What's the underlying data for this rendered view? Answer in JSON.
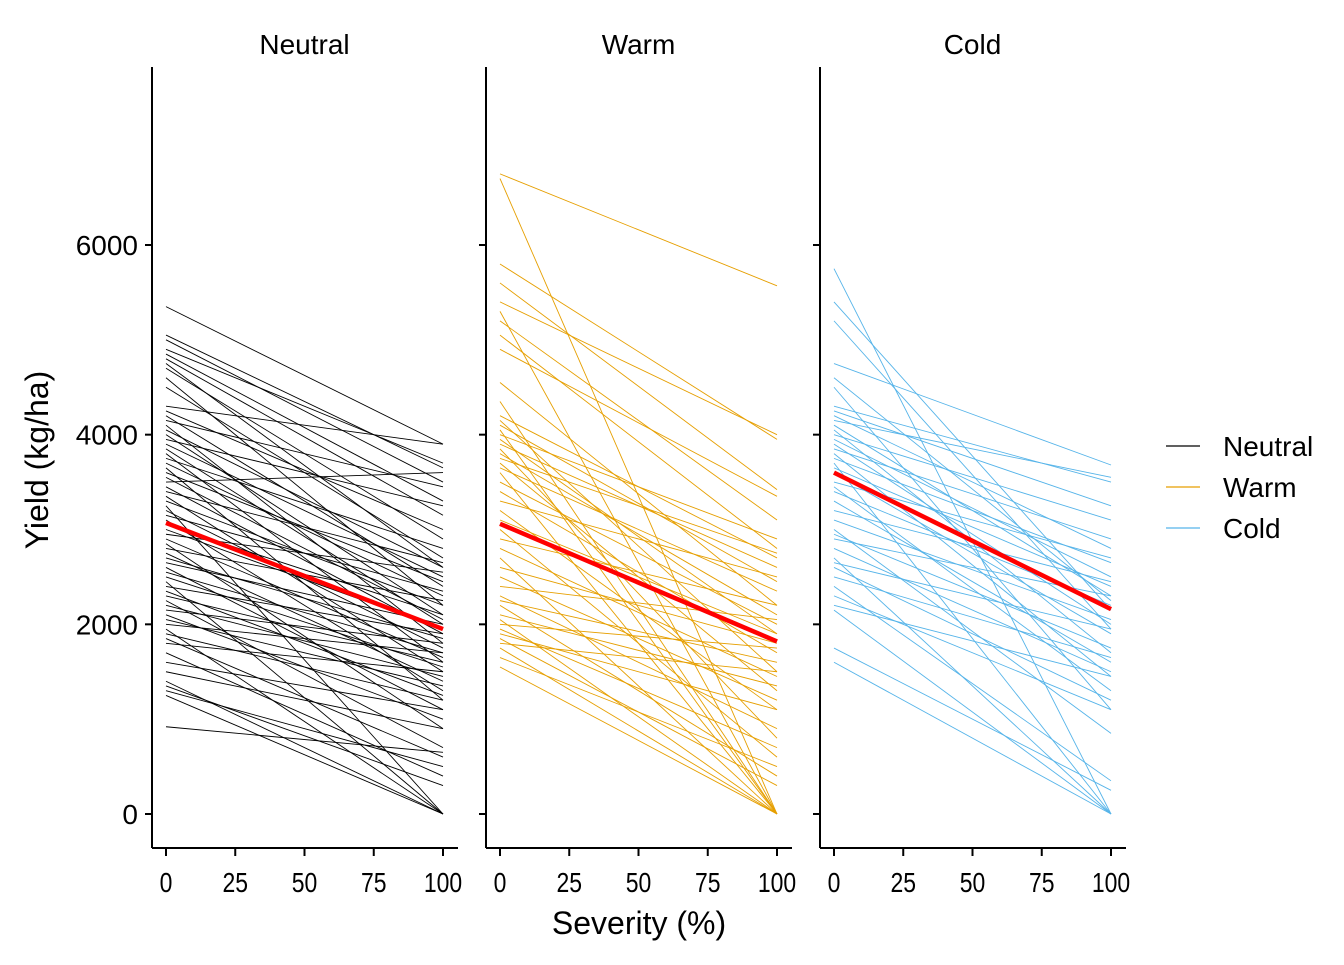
{
  "chart_data": {
    "type": "line",
    "title": "",
    "xlabel": "Severity (%)",
    "ylabel": "Yield (kg/ha)",
    "xlim": [
      0,
      100
    ],
    "ylim": [
      -350,
      7800
    ],
    "x_ticks": [
      0,
      25,
      50,
      75,
      100
    ],
    "x_tick_labels": [
      "0",
      "25",
      "50",
      "75",
      "100"
    ],
    "y_ticks": [
      0,
      2000,
      4000,
      6000
    ],
    "y_tick_labels": [
      "0",
      "2000",
      "4000",
      "6000"
    ],
    "grid": false,
    "legend": {
      "placement": "right",
      "entries": [
        {
          "label": "Neutral",
          "color": "#000000"
        },
        {
          "label": "Warm",
          "color": "#E69F00"
        },
        {
          "label": "Cold",
          "color": "#56B4E9"
        }
      ]
    },
    "mean_line_color": "#FF0000",
    "panels": [
      {
        "name": "Neutral",
        "color": "#000000",
        "mean_line": {
          "x": [
            0,
            100
          ],
          "y": [
            3070,
            1950
          ]
        },
        "lines": [
          [
            5350,
            3900
          ],
          [
            5050,
            3650
          ],
          [
            5000,
            3500
          ],
          [
            4900,
            3700
          ],
          [
            4850,
            3300
          ],
          [
            4800,
            3150
          ],
          [
            4750,
            2600
          ],
          [
            4700,
            2900
          ],
          [
            4600,
            2200
          ],
          [
            4500,
            2700
          ],
          [
            4300,
            3900
          ],
          [
            4250,
            3000
          ],
          [
            4200,
            2400
          ],
          [
            4150,
            3450
          ],
          [
            4100,
            1800
          ],
          [
            4050,
            2600
          ],
          [
            4000,
            2100
          ],
          [
            3950,
            3250
          ],
          [
            3900,
            2500
          ],
          [
            3850,
            2000
          ],
          [
            3800,
            1600
          ],
          [
            3750,
            2800
          ],
          [
            3700,
            2300
          ],
          [
            3650,
            1200
          ],
          [
            3600,
            2450
          ],
          [
            3550,
            2050
          ],
          [
            3500,
            3600
          ],
          [
            3450,
            1900
          ],
          [
            3400,
            2650
          ],
          [
            3350,
            1500
          ],
          [
            3300,
            2200
          ],
          [
            3250,
            0
          ],
          [
            3200,
            1750
          ],
          [
            3150,
            2350
          ],
          [
            3100,
            1300
          ],
          [
            3050,
            2100
          ],
          [
            3000,
            1950
          ],
          [
            2950,
            2550
          ],
          [
            2900,
            1650
          ],
          [
            2850,
            900
          ],
          [
            2800,
            2250
          ],
          [
            2750,
            1400
          ],
          [
            2700,
            1850
          ],
          [
            2650,
            2000
          ],
          [
            2600,
            1100
          ],
          [
            2550,
            1700
          ],
          [
            2500,
            1550
          ],
          [
            2450,
            0
          ],
          [
            2400,
            1900
          ],
          [
            2350,
            1250
          ],
          [
            2300,
            1600
          ],
          [
            2250,
            700
          ],
          [
            2200,
            1450
          ],
          [
            2150,
            1800
          ],
          [
            2100,
            1000
          ],
          [
            2050,
            1350
          ],
          [
            2000,
            1700
          ],
          [
            1950,
            0
          ],
          [
            1900,
            1200
          ],
          [
            1850,
            600
          ],
          [
            1800,
            1500
          ],
          [
            1700,
            400
          ],
          [
            1600,
            1100
          ],
          [
            1500,
            900
          ],
          [
            1400,
            0
          ],
          [
            1350,
            300
          ],
          [
            1300,
            500
          ],
          [
            1250,
            0
          ],
          [
            920,
            650
          ]
        ]
      },
      {
        "name": "Warm",
        "color": "#E69F00",
        "mean_line": {
          "x": [
            0,
            100
          ],
          "y": [
            3060,
            1820
          ]
        },
        "lines": [
          [
            6750,
            5570
          ],
          [
            6700,
            0
          ],
          [
            5800,
            3950
          ],
          [
            5600,
            3420
          ],
          [
            5400,
            4000
          ],
          [
            5300,
            0
          ],
          [
            5200,
            3100
          ],
          [
            5050,
            2800
          ],
          [
            4900,
            3350
          ],
          [
            4550,
            2200
          ],
          [
            4350,
            0
          ],
          [
            4200,
            2700
          ],
          [
            4150,
            1500
          ],
          [
            4100,
            2450
          ],
          [
            4050,
            0
          ],
          [
            4000,
            2900
          ],
          [
            3950,
            1900
          ],
          [
            3900,
            2600
          ],
          [
            3850,
            800
          ],
          [
            3800,
            2100
          ],
          [
            3750,
            2750
          ],
          [
            3700,
            1300
          ],
          [
            3650,
            2350
          ],
          [
            3600,
            0
          ],
          [
            3500,
            2000
          ],
          [
            3400,
            1700
          ],
          [
            3300,
            2500
          ],
          [
            3200,
            1100
          ],
          [
            3100,
            1900
          ],
          [
            3000,
            600
          ],
          [
            2900,
            2200
          ],
          [
            2800,
            1450
          ],
          [
            2700,
            0
          ],
          [
            2600,
            1800
          ],
          [
            2500,
            1200
          ],
          [
            2400,
            2050
          ],
          [
            2300,
            900
          ],
          [
            2250,
            1600
          ],
          [
            2200,
            400
          ],
          [
            2100,
            1350
          ],
          [
            2050,
            0
          ],
          [
            2000,
            1750
          ],
          [
            1950,
            700
          ],
          [
            1900,
            1100
          ],
          [
            1850,
            300
          ],
          [
            1800,
            1500
          ],
          [
            1750,
            0
          ],
          [
            1650,
            500
          ],
          [
            1550,
            0
          ]
        ]
      },
      {
        "name": "Cold",
        "color": "#56B4E9",
        "mean_line": {
          "x": [
            0,
            100
          ],
          "y": [
            3600,
            2160
          ]
        },
        "lines": [
          [
            5750,
            0
          ],
          [
            5400,
            2150
          ],
          [
            5200,
            1950
          ],
          [
            4750,
            3680
          ],
          [
            4600,
            2250
          ],
          [
            4500,
            1100
          ],
          [
            4300,
            3500
          ],
          [
            4250,
            3250
          ],
          [
            4200,
            2800
          ],
          [
            4150,
            3550
          ],
          [
            4100,
            2300
          ],
          [
            4050,
            1700
          ],
          [
            4000,
            3100
          ],
          [
            3950,
            2500
          ],
          [
            3900,
            2000
          ],
          [
            3850,
            2900
          ],
          [
            3800,
            1450
          ],
          [
            3750,
            2650
          ],
          [
            3700,
            0
          ],
          [
            3650,
            2400
          ],
          [
            3600,
            1900
          ],
          [
            3500,
            2700
          ],
          [
            3450,
            1300
          ],
          [
            3400,
            2200
          ],
          [
            3300,
            1600
          ],
          [
            3200,
            2450
          ],
          [
            3100,
            2050
          ],
          [
            3000,
            850
          ],
          [
            2950,
            1750
          ],
          [
            2900,
            2300
          ],
          [
            2800,
            1500
          ],
          [
            2700,
            0
          ],
          [
            2650,
            1950
          ],
          [
            2600,
            1200
          ],
          [
            2500,
            1650
          ],
          [
            2400,
            350
          ],
          [
            2300,
            1100
          ],
          [
            2200,
            1450
          ],
          [
            2150,
            0
          ],
          [
            1750,
            250
          ],
          [
            1600,
            0
          ]
        ]
      }
    ]
  }
}
